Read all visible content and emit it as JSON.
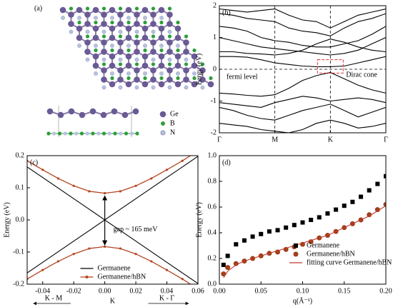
{
  "panel_a": {
    "label": "(a)",
    "legend": [
      "Ge",
      "B",
      "N"
    ]
  },
  "chart_data": [
    {
      "type": "line",
      "panel": "(b)",
      "y_label": "Eergy (eV)",
      "x": [
        0,
        0.25,
        0.5,
        0.75,
        1,
        1.25,
        1.5,
        1.75,
        2,
        2.25,
        2.5,
        2.75,
        3
      ],
      "xlim": [
        0,
        3
      ],
      "ylim": [
        -2,
        2
      ],
      "xticks": [
        {
          "value": 0,
          "label": "Γ"
        },
        {
          "value": 1,
          "label": "M"
        },
        {
          "value": 2,
          "label": "K"
        },
        {
          "value": 3,
          "label": "Γ"
        }
      ],
      "yticks": [
        -2,
        -1,
        0,
        1,
        2
      ],
      "xgrid": "dashed",
      "hlines": [
        0
      ],
      "annotations": [
        "fermi level",
        "Dirac cone"
      ],
      "series": [
        {
          "color": "#000000",
          "values": [
            -0.75,
            -0.78,
            -0.82,
            -0.85,
            -0.8,
            -0.6,
            -0.35,
            -0.2,
            -0.1,
            -0.3,
            -0.5,
            -0.65,
            -0.75
          ]
        },
        {
          "color": "#000000",
          "values": [
            -1.05,
            -1.1,
            -1.15,
            -1.2,
            -1.05,
            -0.95,
            -0.85,
            -0.9,
            -1.0,
            -0.95,
            -0.9,
            -0.95,
            -1.05
          ]
        },
        {
          "color": "#000000",
          "values": [
            -1.2,
            -1.3,
            -1.45,
            -1.55,
            -1.6,
            -1.45,
            -1.3,
            -1.2,
            -1.1,
            -1.3,
            -1.5,
            -1.35,
            -1.2
          ]
        },
        {
          "color": "#000000",
          "values": [
            -1.7,
            -1.75,
            -1.8,
            -1.9,
            -1.95,
            -2,
            -1.9,
            -1.7,
            -1.6,
            -1.7,
            -1.85,
            -1.8,
            -1.7
          ]
        },
        {
          "color": "#000000",
          "values": [
            0.4,
            0.4,
            0.38,
            0.3,
            0.2,
            0.15,
            0.1,
            0.08,
            0.08,
            0.1,
            0.2,
            0.3,
            0.4
          ]
        },
        {
          "color": "#000000",
          "values": [
            0.55,
            0.55,
            0.5,
            0.48,
            0.45,
            0.5,
            0.6,
            0.8,
            0.95,
            0.85,
            0.7,
            0.6,
            0.55
          ]
        },
        {
          "color": "#000000",
          "values": [
            1.0,
            0.9,
            0.8,
            0.7,
            0.65,
            0.6,
            0.55,
            0.5,
            0.45,
            0.5,
            0.6,
            0.8,
            1.0
          ]
        },
        {
          "color": "#000000",
          "values": [
            1.35,
            1.3,
            1.2,
            1.0,
            0.9,
            0.85,
            0.75,
            0.7,
            0.7,
            0.8,
            0.9,
            1.1,
            1.35
          ]
        },
        {
          "color": "#000000",
          "values": [
            1.75,
            1.7,
            1.6,
            1.55,
            1.5,
            1.3,
            1.2,
            1.15,
            1.05,
            1.3,
            1.5,
            1.6,
            1.75
          ]
        },
        {
          "color": "#000000",
          "values": [
            1.9,
            1.85,
            1.8,
            1.85,
            1.9,
            1.7,
            1.55,
            1.5,
            1.3,
            1.5,
            1.7,
            1.8,
            1.9
          ]
        }
      ]
    },
    {
      "type": "line",
      "panel": "(c)",
      "x_label": "K",
      "y_label": "Energy (eV)",
      "x": [
        -0.05,
        -0.04,
        -0.03,
        -0.02,
        -0.01,
        0,
        0.01,
        0.02,
        0.03,
        0.04,
        0.05,
        0.06
      ],
      "xlim": [
        -0.05,
        0.06
      ],
      "ylim": [
        -0.2,
        0.2
      ],
      "xticks": [
        -0.04,
        -0.02,
        {
          "value": 0,
          "label": "0.00"
        },
        0.02,
        0.04,
        0.06
      ],
      "yticks": [
        -0.2,
        -0.1,
        {
          "value": 0,
          "label": "0.0"
        },
        0.1,
        0.2
      ],
      "annotations": [
        "gap ~ 165 meV",
        "K - M",
        "K - Γ"
      ],
      "legend": "lower center",
      "series": [
        {
          "name": "Germanene",
          "color": "#000000",
          "marker": "none",
          "branches": [
            [
              0.165,
              0.132,
              0.099,
              0.066,
              0.033,
              0,
              0.033,
              0.066,
              0.099,
              0.132,
              0.165,
              0.198
            ],
            [
              -0.165,
              -0.132,
              -0.099,
              -0.066,
              -0.033,
              0,
              -0.033,
              -0.066,
              -0.099,
              -0.132,
              -0.165,
              -0.198
            ]
          ]
        },
        {
          "name": "Germanene/hBN",
          "color": "#b5431f",
          "marker": "dot",
          "branches": [
            [
              0.184,
              0.156,
              0.129,
              0.106,
              0.089,
              0.083,
              0.089,
              0.106,
              0.129,
              0.156,
              0.184,
              0.215
            ],
            [
              -0.184,
              -0.156,
              -0.129,
              -0.106,
              -0.089,
              -0.083,
              -0.089,
              -0.106,
              -0.129,
              -0.156,
              -0.184,
              -0.215
            ]
          ]
        }
      ]
    },
    {
      "type": "line",
      "panel": "(d)",
      "x_label": "q(Å⁻¹)",
      "y_label": "Energy (eV)",
      "x": [
        0.005,
        0.01,
        0.02,
        0.03,
        0.04,
        0.05,
        0.06,
        0.07,
        0.08,
        0.09,
        0.1,
        0.11,
        0.12,
        0.13,
        0.14,
        0.15,
        0.16,
        0.17,
        0.18,
        0.19,
        0.2
      ],
      "xlim": [
        0,
        0.2
      ],
      "ylim": [
        0,
        1
      ],
      "xticks": [
        {
          "value": 0,
          "label": "0.00"
        },
        0.05,
        {
          "value": 0.1,
          "label": "0.10"
        },
        0.15,
        {
          "value": 0.2,
          "label": "0.20"
        }
      ],
      "yticks": [
        {
          "value": 0,
          "label": "0.0"
        },
        0.2,
        0.4,
        0.6,
        0.8,
        {
          "value": 1,
          "label": "1.0"
        }
      ],
      "legend": "lower right",
      "series": [
        {
          "name": "Germanene",
          "color": "#000000",
          "marker": "square",
          "values": [
            0.15,
            0.22,
            0.31,
            0.34,
            0.37,
            0.39,
            0.41,
            0.42,
            0.44,
            0.46,
            0.48,
            0.5,
            0.52,
            0.55,
            0.58,
            0.61,
            0.64,
            0.68,
            0.73,
            0.78,
            0.84
          ]
        },
        {
          "name": "Germanene/hBN",
          "color": "#a0401c",
          "marker": "circle",
          "values": [
            0.08,
            0.13,
            0.16,
            0.18,
            0.2,
            0.22,
            0.24,
            0.25,
            0.27,
            0.29,
            0.31,
            0.33,
            0.36,
            0.38,
            0.41,
            0.44,
            0.47,
            0.5,
            0.54,
            0.58,
            0.62
          ]
        },
        {
          "name": "fitting curve Germanene/hBN",
          "color": "#c0392b",
          "marker": "none",
          "values": [
            0.05,
            0.1,
            0.15,
            0.18,
            0.2,
            0.22,
            0.24,
            0.26,
            0.28,
            0.3,
            0.32,
            0.34,
            0.36,
            0.38,
            0.41,
            0.44,
            0.47,
            0.5,
            0.53,
            0.57,
            0.61
          ]
        }
      ]
    }
  ]
}
